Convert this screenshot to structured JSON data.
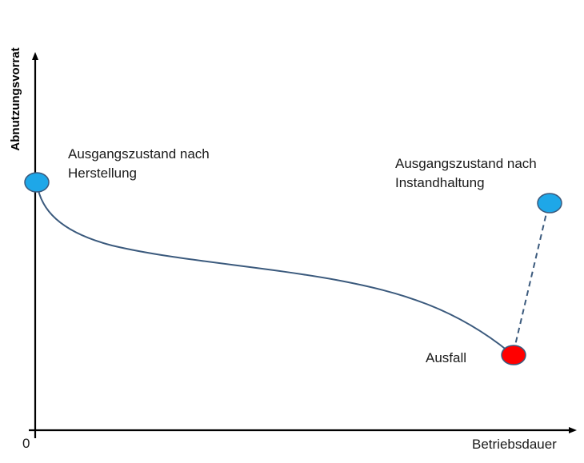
{
  "diagram": {
    "y_axis_label": "Abnutzungsvorrat",
    "x_axis_label": "Betriebsdauer",
    "origin_label": "0",
    "points": {
      "start": {
        "label_line1": "Ausgangszustand nach",
        "label_line2": "Herstellung",
        "color": "#1ea7e8"
      },
      "failure": {
        "label": "Ausfall",
        "color": "#ff0000"
      },
      "restored": {
        "label_line1": "Ausgangszustand nach",
        "label_line2": "Instandhaltung",
        "color": "#1ea7e8"
      }
    },
    "curve_color": "#3b5a7d",
    "axis_color": "#000000"
  }
}
